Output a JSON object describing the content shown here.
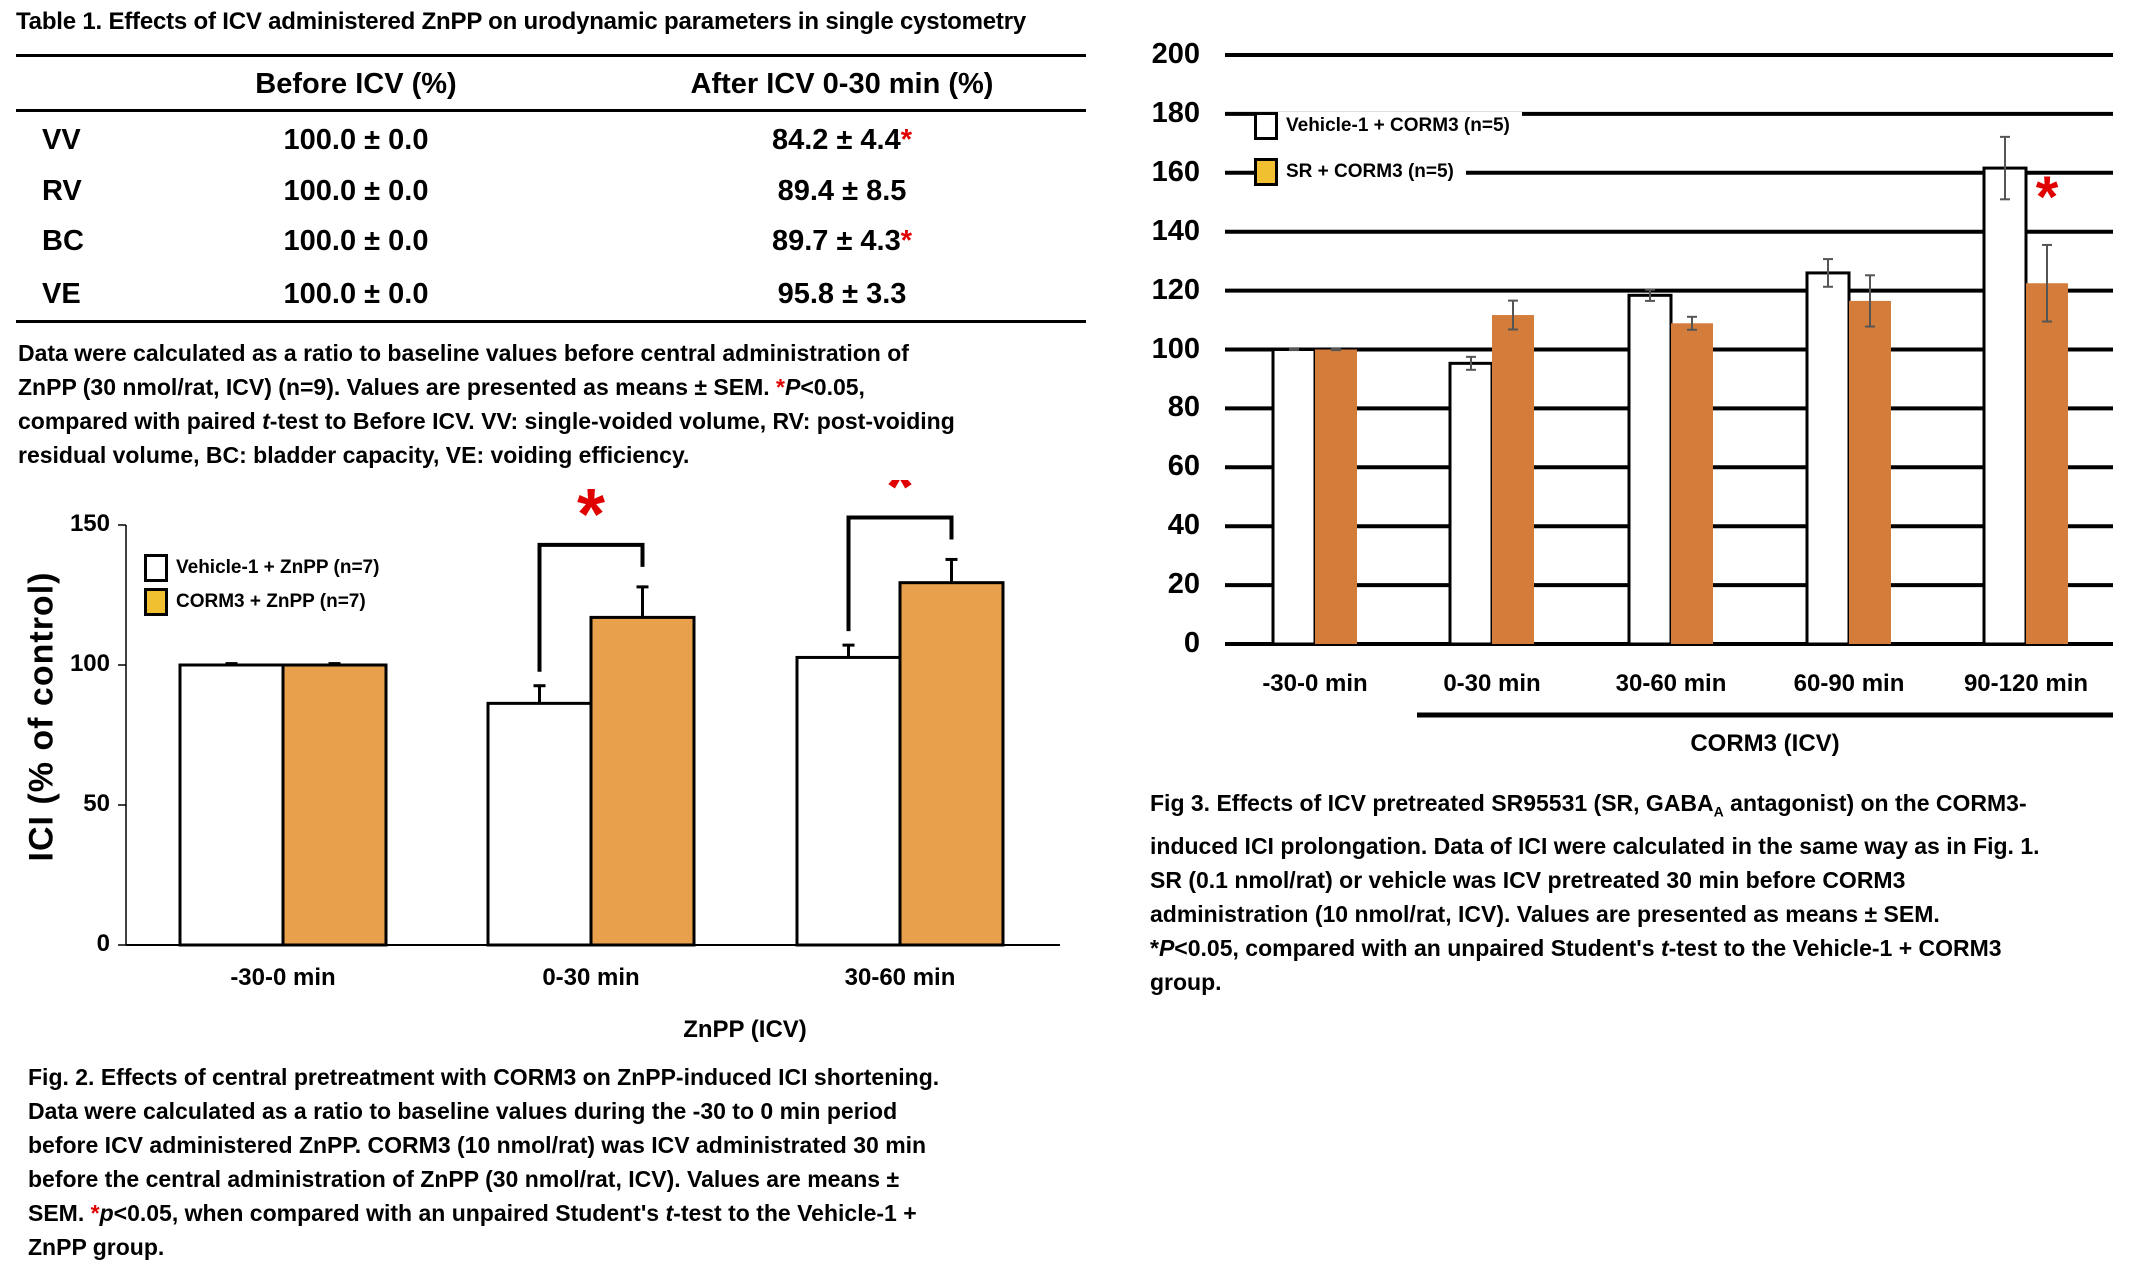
{
  "table": {
    "title": "Table 1. Effects of ICV administered ZnPP on urodynamic parameters in single cystometry",
    "columns": [
      "",
      "Before ICV (%)",
      "After ICV 0-30 min (%)"
    ],
    "rows": [
      {
        "label": "VV",
        "before": "100.0 ± 0.0",
        "after": "84.2 ± 4.4",
        "significant": true
      },
      {
        "label": "RV",
        "before": "100.0 ± 0.0",
        "after": "89.4 ± 8.5",
        "significant": false
      },
      {
        "label": "BC",
        "before": "100.0 ± 0.0",
        "after": "89.7 ± 4.3",
        "significant": true
      },
      {
        "label": "VE",
        "before": "100.0 ± 0.0",
        "after": "95.8 ± 3.3",
        "significant": false
      }
    ],
    "star": "*",
    "caption": [
      "Data were calculated as a ratio to baseline values before central administration of",
      "ZnPP (30 nmol/rat, ICV) (n=9).  Values are presented as means ± SEM.  ",
      "compared with paired ",
      "residual volume, BC: bladder capacity, VE: voiding efficiency."
    ],
    "caption_parts": {
      "l2_pre": "ZnPP (30 nmol/rat, ICV) (n=9).  Values are presented as means ± SEM.  ",
      "l2_star": "*",
      "l2_p": "P",
      "l2_post": "<0.05,",
      "l3_pre": "compared with paired ",
      "l3_t": "t",
      "l3_post": "-test to Before ICV.  VV: single-voided volume, RV: post-voiding"
    }
  },
  "chart_data": [
    {
      "id": "fig2",
      "type": "bar",
      "title": "",
      "xlabel": "",
      "ylabel": "ICI (% of control)",
      "ylim": [
        0,
        150
      ],
      "yticks": [
        0,
        50,
        100,
        150
      ],
      "grid": false,
      "categories": [
        "-30-0 min",
        "0-30 min",
        "30-60 min"
      ],
      "group_bar_label": "ZnPP (ICV)",
      "group_bar_categories": [
        "0-30 min",
        "30-60 min"
      ],
      "legend_position": "top-left",
      "series": [
        {
          "name": "Vehicle-1 + ZnPP (n=7)",
          "color": "#ffffff",
          "values": [
            100,
            86.3,
            102.7
          ],
          "errors": [
            0.5,
            6.3,
            4.4
          ]
        },
        {
          "name": "CORM3 + ZnPP (n=7)",
          "color": "#e8a04c",
          "legend_color": "#f0c030",
          "values": [
            100,
            117.0,
            129.4
          ],
          "errors": [
            0.5,
            10.9,
            8.3
          ]
        }
      ],
      "significance": [
        {
          "category": "0-30 min",
          "label": "*"
        },
        {
          "category": "30-60 min",
          "label": "*"
        }
      ],
      "caption": [
        "Fig. 2. Effects of central pretreatment with CORM3 on ZnPP-induced ICI shortening.",
        "Data were calculated as a ratio to baseline values during the -30 to 0 min period",
        "before ICV administered ZnPP.  CORM3 (10 nmol/rat) was ICV administrated 30 min",
        "before the central administration of ZnPP (30 nmol/rat, ICV). Values are means ±",
        "ZnPP group."
      ],
      "caption_l5": {
        "pre": "SEM. ",
        "star": "*",
        "p": "p",
        "mid": "<0.05, when compared with an unpaired Student's ",
        "t": "t",
        "post": "-test to the Vehicle-1 +"
      }
    },
    {
      "id": "fig3",
      "type": "bar",
      "title": "",
      "xlabel": "",
      "ylabel": "",
      "ylim": [
        0,
        200
      ],
      "yticks": [
        0,
        20,
        40,
        60,
        80,
        100,
        120,
        140,
        160,
        180,
        200
      ],
      "grid": true,
      "categories": [
        "-30-0 min",
        "0-30 min",
        "30-60 min",
        "60-90 min",
        "90-120 min"
      ],
      "group_bar_label": "CORM3 (ICV)",
      "group_bar_categories": [
        "0-30 min",
        "30-60 min",
        "60-90 min",
        "90-120 min"
      ],
      "legend_position": "top-left",
      "series": [
        {
          "name": "Vehicle-1 + CORM3 (n=5)",
          "color": "#ffffff",
          "values": [
            100,
            95.3,
            118.4,
            126.0,
            161.6
          ],
          "errors": [
            0.2,
            2.2,
            1.9,
            4.7,
            10.6
          ]
        },
        {
          "name": "SR + CORM3 (n=5)",
          "color": "#d47d3a",
          "legend_color": "#f0c030",
          "values": [
            100,
            111.7,
            108.9,
            116.5,
            122.5
          ],
          "errors": [
            0.2,
            4.9,
            2.2,
            8.7,
            13.0
          ]
        }
      ],
      "significance": [
        {
          "category": "90-120 min",
          "label": "*"
        }
      ],
      "caption": [
        "induced ICI prolongation.  Data of ICI were calculated in the same way as in Fig. 1.",
        "SR (0.1 nmol/rat) or vehicle was ICV pretreated 30 min before CORM3",
        "administration (10 nmol/rat, ICV).  Values are presented as means ± SEM.",
        "group."
      ],
      "caption_l1": {
        "pre": "Fig 3. Effects of ICV pretreated SR95531 (SR, GABA",
        "sub": "A",
        "post": " antagonist) on the CORM3-"
      },
      "caption_l5": {
        "pre": "*",
        "p": "P",
        "mid": "<0.05, compared with an unpaired Student's ",
        "t": "t",
        "post": "-test to the Vehicle-1 + CORM3"
      }
    }
  ]
}
